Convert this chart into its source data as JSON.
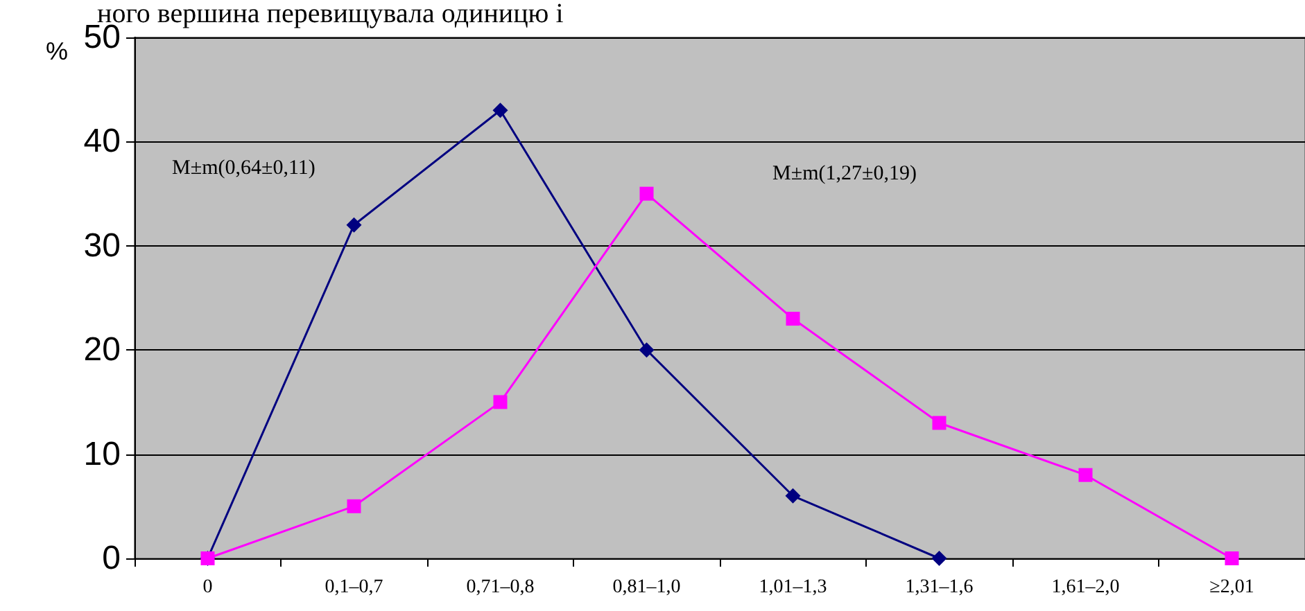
{
  "chart_data": {
    "type": "line",
    "ylabel": "%",
    "categories": [
      "0",
      "0,1–0,7",
      "0,71–0,8",
      "0,81–1,0",
      "1,01–1,3",
      "1,31–1,6",
      "1,61–2,0",
      "≥2,01"
    ],
    "series": [
      {
        "color": "#000080",
        "marker": "diamond",
        "values": [
          0,
          32,
          43,
          20,
          6,
          0,
          null,
          null
        ]
      },
      {
        "color": "#ff00ff",
        "marker": "square",
        "values": [
          0,
          5,
          15,
          35,
          23,
          13,
          8,
          0
        ]
      }
    ],
    "ylim": [
      0,
      50
    ],
    "yticks": [
      0,
      10,
      20,
      30,
      40,
      50
    ],
    "grid": "y",
    "annotations": [
      "ного вершина перевищувала одиницю і",
      "M±m(0,64±0,11)",
      "M±m(1,27±0,19)"
    ]
  }
}
